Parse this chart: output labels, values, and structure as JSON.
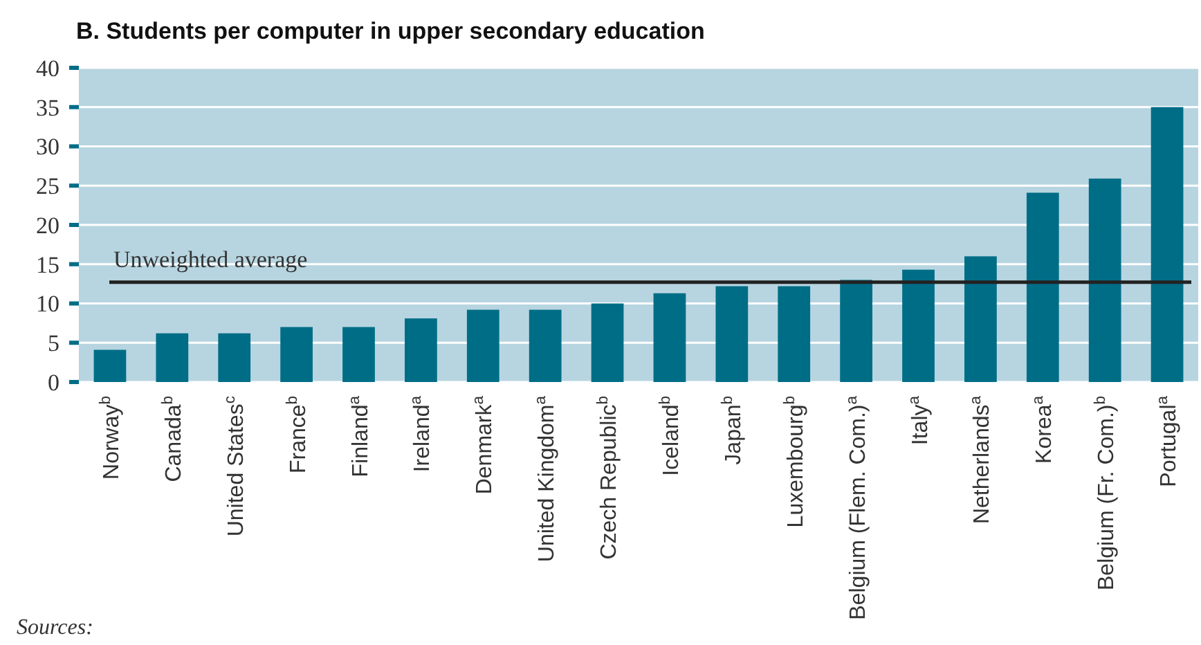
{
  "chart_data": {
    "type": "bar",
    "title": "B. Students per computer in upper secondary education",
    "categories": [
      "Norway$^{b}$",
      "Canada$^{b}$",
      "United States$^{c}$",
      "France$^{b}$",
      "Finland$^{a}$",
      "Ireland$^{a}$",
      "Denmark$^{a}$",
      "United Kingdom$^{a}$",
      "Czech Republic$^{b}$",
      "Iceland$^{b}$",
      "Japan$^{b}$",
      "Luxembourg$^{b}$",
      "Belgium (Flem. Com.)$^{a}$",
      "Italy$^{a}$",
      "Netherlands$^{a}$",
      "Korea$^{a}$",
      "Belgium (Fr. Com.)$^{b}$",
      "Portugal$^{a}$"
    ],
    "values": [
      4.1,
      6.2,
      6.2,
      7.0,
      7.0,
      8.1,
      9.2,
      9.2,
      10.0,
      11.3,
      12.2,
      12.2,
      13.0,
      14.3,
      16.0,
      24.1,
      25.9,
      35
    ],
    "color": "#006d87",
    "ylim": [
      0,
      40
    ],
    "yticks": [
      0,
      5,
      10,
      15,
      20,
      25,
      30,
      35,
      40
    ],
    "grid": "y",
    "ref_lines": [
      {
        "axis": "y",
        "value": 12.7,
        "label": "Unweighted average",
        "color": "#222222"
      }
    ],
    "annotations": [
      "Sources:"
    ]
  }
}
